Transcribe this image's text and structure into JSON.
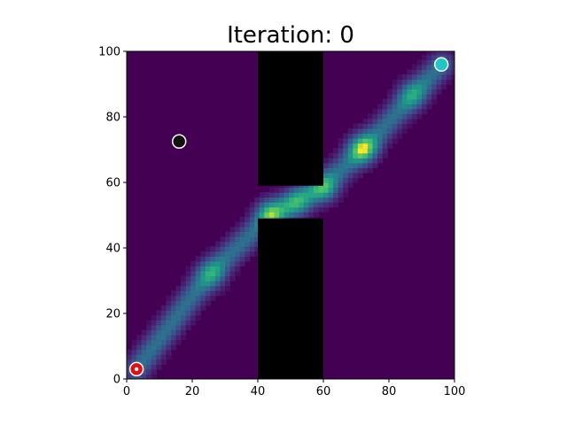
{
  "chart_data": {
    "type": "heatmap",
    "title": "Iteration: 0",
    "xlabel": "",
    "ylabel": "",
    "xlim": [
      0,
      100
    ],
    "ylim": [
      0,
      100
    ],
    "xticks": [
      0,
      20,
      40,
      60,
      80,
      100
    ],
    "yticks": [
      0,
      20,
      40,
      60,
      80,
      100
    ],
    "grid": false,
    "colormap": "viridis",
    "background_color": "#440154",
    "obstacles": [
      {
        "x0": 40,
        "x1": 60,
        "y0": 59,
        "y1": 100
      },
      {
        "x0": 40,
        "x1": 60,
        "y0": 0,
        "y1": 49
      }
    ],
    "density_path": [
      [
        3,
        3
      ],
      [
        25,
        32
      ],
      [
        44,
        50
      ],
      [
        60,
        59
      ],
      [
        73,
        71
      ],
      [
        96,
        96
      ]
    ],
    "hotspots": [
      {
        "x": 26,
        "y": 32,
        "intensity": 0.55
      },
      {
        "x": 44,
        "y": 50.5,
        "intensity": 0.85
      },
      {
        "x": 52,
        "y": 54,
        "intensity": 0.6
      },
      {
        "x": 60,
        "y": 58.5,
        "intensity": 0.7
      },
      {
        "x": 72,
        "y": 70.5,
        "intensity": 1.0
      },
      {
        "x": 87,
        "y": 87,
        "intensity": 0.5
      }
    ],
    "markers": [
      {
        "name": "start",
        "x": 3,
        "y": 3,
        "color": "#e01010"
      },
      {
        "name": "goal",
        "x": 96,
        "y": 96,
        "color": "#1fc6c6"
      },
      {
        "name": "agent",
        "x": 16,
        "y": 72.5,
        "color": "#111111"
      }
    ]
  }
}
